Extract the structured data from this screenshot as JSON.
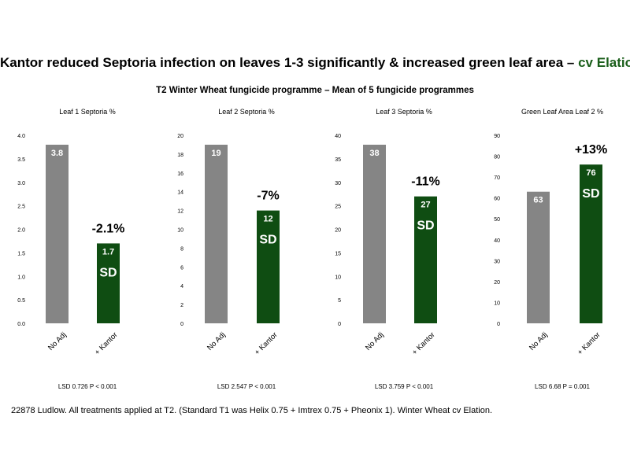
{
  "title": {
    "main": "Kantor reduced Septoria infection on leaves 1-3 significantly & increased green leaf area – ",
    "accent": "cv Elation",
    "subtitle": "T2 Winter Wheat fungicide programme – Mean of 5 fungicide programmes"
  },
  "footnote": "22878 Ludlow. All treatments applied at T2. (Standard T1 was Helix 0.75 + Imtrex 0.75 + Pheonix 1).  Winter Wheat cv Elation.",
  "colors": {
    "no_adj": "#858585",
    "kantor": "#0f4d12",
    "accent": "#1a5e1a"
  },
  "chart_data": [
    {
      "type": "bar",
      "title": "Leaf 1 Septoria %",
      "categories": [
        "No Adj",
        "+ Kantor"
      ],
      "values": [
        3.8,
        1.7
      ],
      "value_labels": [
        "3.8",
        "1.7"
      ],
      "ylim": [
        0,
        4.0
      ],
      "yticks": [
        "0.0",
        "0.5",
        "1.0",
        "1.5",
        "2.0",
        "2.5",
        "3.0",
        "3.5",
        "4.0"
      ],
      "change_label": "-2.1%",
      "sig_label": "SD",
      "stat": "LSD 0.726 P < 0.001"
    },
    {
      "type": "bar",
      "title": "Leaf 2 Septoria %",
      "categories": [
        "No Adj",
        "+ Kantor"
      ],
      "values": [
        19,
        12
      ],
      "value_labels": [
        "19",
        "12"
      ],
      "ylim": [
        0,
        20
      ],
      "yticks": [
        "0",
        "2",
        "4",
        "6",
        "8",
        "10",
        "12",
        "14",
        "16",
        "18",
        "20"
      ],
      "change_label": "-7%",
      "sig_label": "SD",
      "stat": "LSD 2.547 P < 0.001"
    },
    {
      "type": "bar",
      "title": "Leaf 3 Septoria %",
      "categories": [
        "No Adj",
        "+ Kantor"
      ],
      "values": [
        38,
        27
      ],
      "value_labels": [
        "38",
        "27"
      ],
      "ylim": [
        0,
        40
      ],
      "yticks": [
        "0",
        "5",
        "10",
        "15",
        "20",
        "25",
        "30",
        "35",
        "40"
      ],
      "change_label": "-11%",
      "sig_label": "SD",
      "stat": "LSD 3.759  P < 0.001"
    },
    {
      "type": "bar",
      "title": "Green Leaf Area Leaf 2 %",
      "categories": [
        "No Adj",
        "+ Kantor"
      ],
      "values": [
        63,
        76
      ],
      "value_labels": [
        "63",
        "76"
      ],
      "ylim": [
        0,
        90
      ],
      "yticks": [
        "0",
        "10",
        "20",
        "30",
        "40",
        "50",
        "60",
        "70",
        "80",
        "90"
      ],
      "change_label": "+13%",
      "sig_label": "SD",
      "stat": "LSD 6.68  P = 0.001"
    }
  ]
}
